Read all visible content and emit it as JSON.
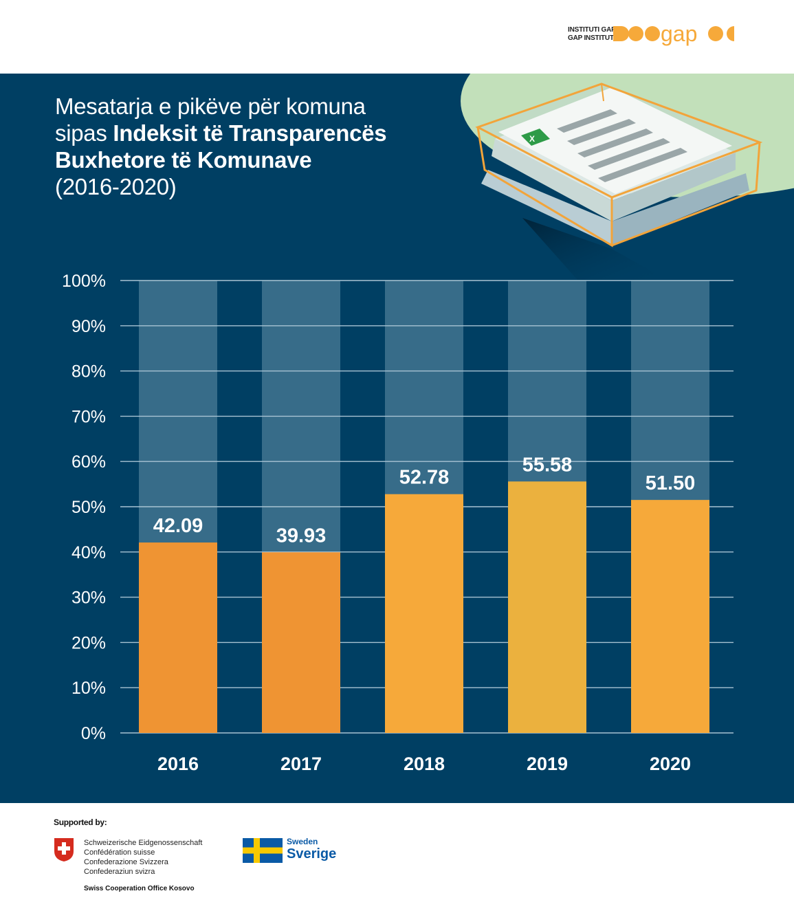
{
  "header": {
    "logo_line1": "INSTITUTI GAP",
    "logo_line2": "GAP INSTITUTE",
    "logo_word": "gap"
  },
  "title": {
    "light_part": "Mesatarja e pikëve për komuna sipas ",
    "bold_part": "Indeksit të Transparencës Buxhetore të Komunave",
    "years": "(2016-2020)"
  },
  "illustration": {
    "icon": "excel-icon",
    "letter": "X"
  },
  "chart_data": {
    "type": "bar",
    "categories": [
      "2016",
      "2017",
      "2018",
      "2019",
      "2020"
    ],
    "values": [
      42.09,
      39.93,
      52.78,
      55.58,
      51.5
    ],
    "value_labels": [
      "42.09",
      "39.93",
      "52.78",
      "55.58",
      "51.50"
    ],
    "bar_colors": [
      "#ef9433",
      "#ef9433",
      "#f6a93a",
      "#ebb13e",
      "#f6a93a"
    ],
    "background_bar_color": "#376c89",
    "ylim": [
      0,
      100
    ],
    "yticks": [
      "0%",
      "10%",
      "20%",
      "30%",
      "40%",
      "50%",
      "60%",
      "70%",
      "80%",
      "90%",
      "100%"
    ],
    "grid": true,
    "title": "",
    "xlabel": "",
    "ylabel": ""
  },
  "footer": {
    "supported_by": "Supported by:",
    "swiss_lines": [
      "Schweizerische Eidgenossenschaft",
      "Confédération suisse",
      "Confederazione Svizzera",
      "Confederaziun svizra"
    ],
    "swiss_office": "Swiss Cooperation Office Kosovo",
    "sweden_line1": "Sweden",
    "sweden_line2": "Sverige"
  },
  "colors": {
    "panel": "#003f63",
    "accent": "#f6a93a",
    "green": "#c2e0ba"
  }
}
